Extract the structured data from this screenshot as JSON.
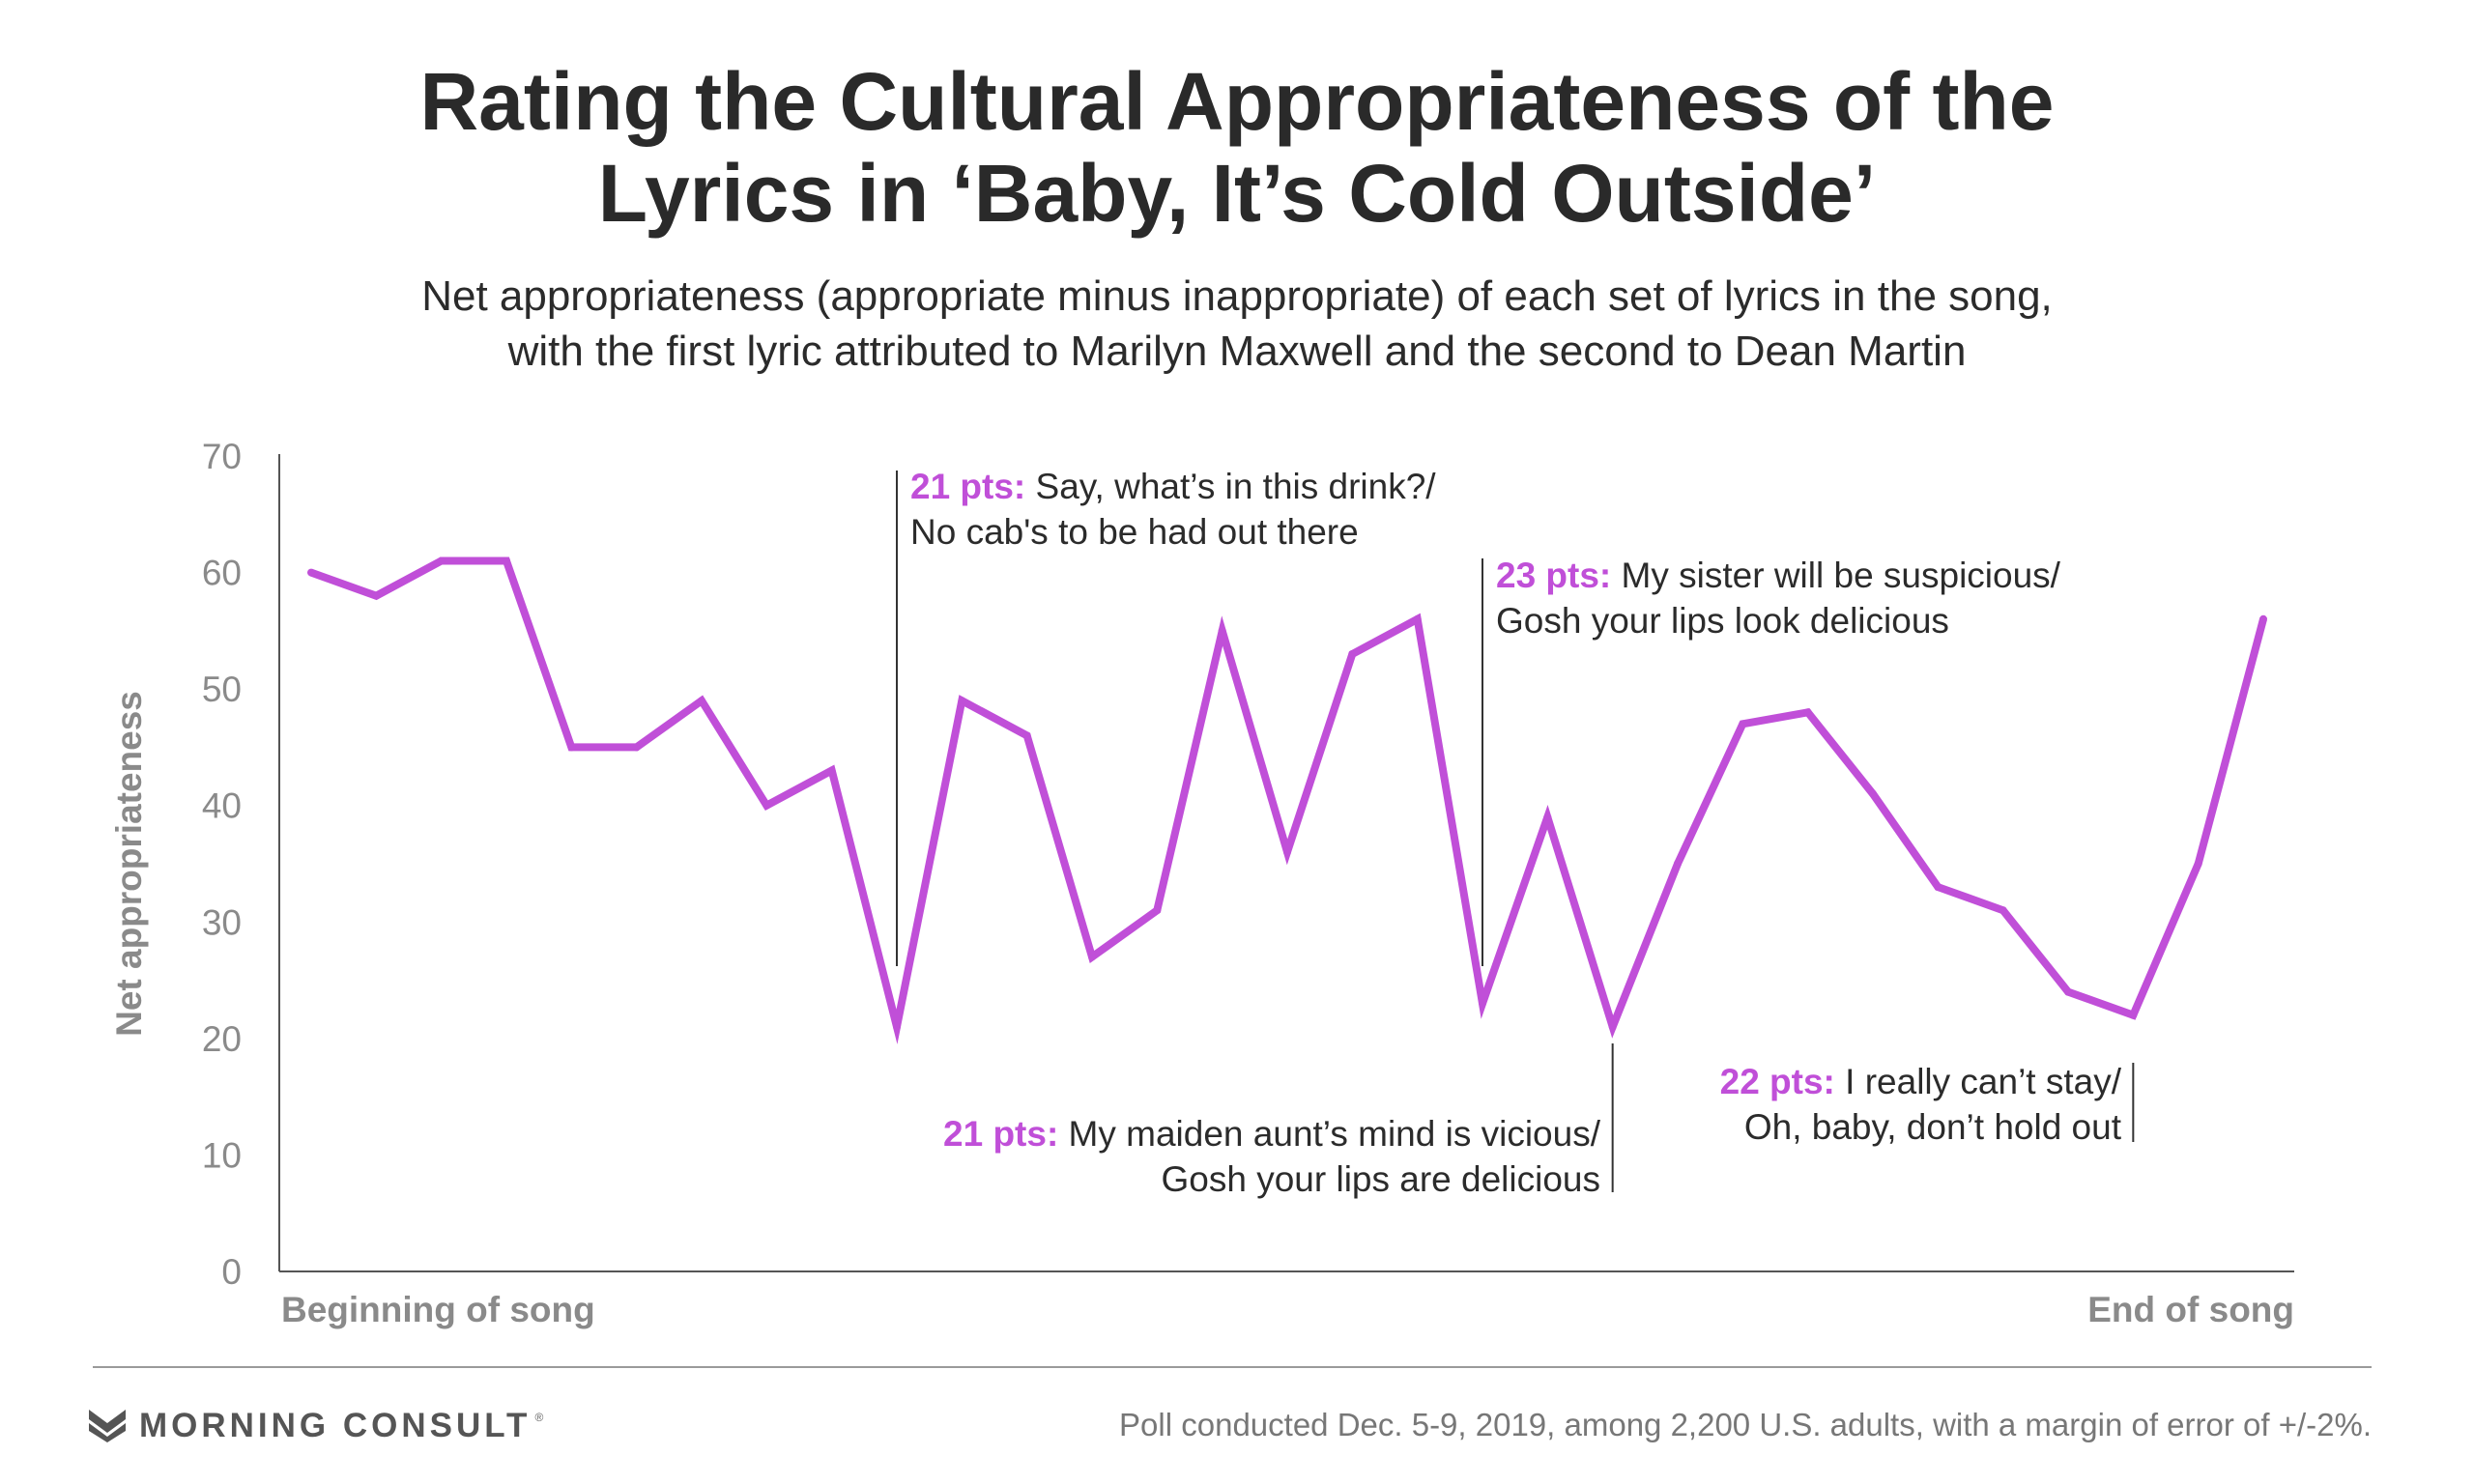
{
  "header": {
    "title_line1": "Rating the Cultural Appropriateness of the",
    "title_line2": "Lyrics in ‘Baby, It’s Cold Outside’",
    "subtitle_line1": "Net appropriateness (appropriate minus inappropriate) of each set of lyrics in the song,",
    "subtitle_line2": "with the first lyric attributed to Marilyn Maxwell and the second to Dean Martin"
  },
  "chart_data": {
    "type": "line",
    "ylabel": "Net appropriateness",
    "xlabel_start": "Beginning of song",
    "xlabel_end": "End of song",
    "ylim": [
      0,
      70
    ],
    "yticks": [
      0,
      10,
      20,
      30,
      40,
      50,
      60,
      70
    ],
    "grid": false,
    "series": [
      {
        "color": "#c04fd8",
        "values": [
          60,
          58,
          61,
          61,
          45,
          45,
          49,
          40,
          43,
          21,
          49,
          46,
          27,
          31,
          55,
          36,
          53,
          56,
          23,
          39,
          21,
          35,
          47,
          48,
          41,
          33,
          31,
          24,
          22,
          35,
          56
        ]
      }
    ],
    "annotations": [
      {
        "index": 9,
        "value_label": "21 pts:",
        "line1": "Say, what’s in this drink?/",
        "line2": "No cab's to be had out there"
      },
      {
        "index": 18,
        "value_label": "23 pts:",
        "line1": "My sister will be suspicious/",
        "line2": "Gosh your lips look delicious"
      },
      {
        "index": 20,
        "value_label": "21 pts:",
        "line1": "My maiden aunt’s mind is vicious/",
        "line2": "Gosh your lips are delicious"
      },
      {
        "index": 28,
        "value_label": "22 pts:",
        "line1": "I really can’t stay/",
        "line2": "Oh, baby, don’t hold out"
      }
    ],
    "colors": {
      "line": "#c04fd8",
      "accent_text": "#c04fd8",
      "axis": "#555555",
      "tick_text": "#8a8a8a"
    }
  },
  "footer": {
    "brand": "MORNING CONSULT",
    "source": "Poll conducted Dec. 5-9, 2019, among 2,200 U.S. adults, with a margin of error of +/-2%."
  }
}
